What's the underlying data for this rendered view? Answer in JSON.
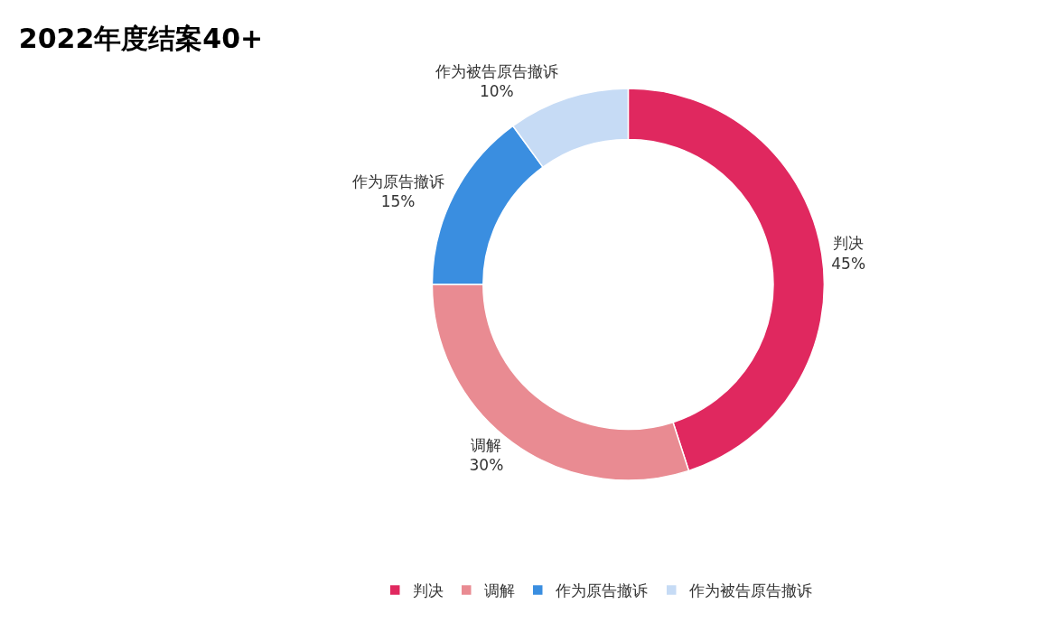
{
  "chart_data": {
    "type": "donut",
    "title": "2022年度结案40+",
    "categories": [
      "判决",
      "调解",
      "作为原告撤诉",
      "作为被告原告撤诉"
    ],
    "values": [
      45,
      30,
      15,
      10
    ],
    "value_labels": [
      "45%",
      "30%",
      "15%",
      "10%"
    ],
    "colors": [
      "#e0285f",
      "#e98b92",
      "#3a8ee0",
      "#c6dbf5"
    ],
    "legend": "bottom"
  }
}
